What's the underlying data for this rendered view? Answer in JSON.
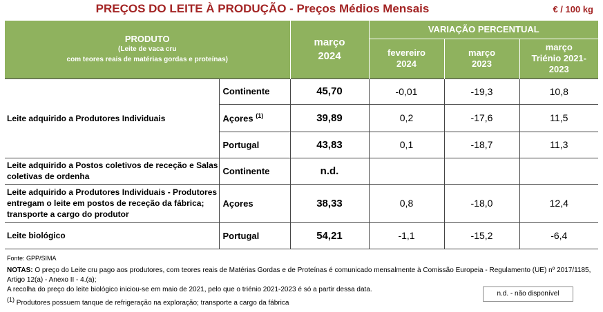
{
  "title": "PREÇOS DO LEITE À PRODUÇÃO - Preços Médios Mensais",
  "unit": "€ / 100 kg",
  "header": {
    "produto": "PRODUTO",
    "produto_sub1": "(Leite de vaca cru",
    "produto_sub2": "com teores reais de matérias gordas e proteínas)",
    "col_main_1": "março",
    "col_main_2": "2024",
    "variacao": "VARIAÇÃO PERCENTUAL",
    "var1_a": "fevereiro",
    "var1_b": "2024",
    "var2_a": "março",
    "var2_b": "2023",
    "var3_a": "março",
    "var3_b": "Triénio 2021-",
    "var3_c": "2023"
  },
  "rows": [
    {
      "product": "Leite adquirido a Produtores Individuais",
      "region": "Continente",
      "price": "45,70",
      "v1": "-0,01",
      "v2": "-19,3",
      "v3": "10,8"
    },
    {
      "region": "Açores",
      "sup": "(1)",
      "price": "39,89",
      "v1": "0,2",
      "v2": "-17,6",
      "v3": "11,5"
    },
    {
      "region": "Portugal",
      "price": "43,83",
      "v1": "0,1",
      "v2": "-18,7",
      "v3": "11,3"
    },
    {
      "product": "Leite adquirido a Postos coletivos de receção e Salas coletivas de ordenha",
      "region": "Continente",
      "price": "n.d.",
      "v1": "",
      "v2": "",
      "v3": ""
    },
    {
      "product": "Leite adquirido a Produtores Individuais - Produtores entregam o leite em postos de receção da fábrica; transporte a cargo do produtor",
      "region": "Açores",
      "price": "38,33",
      "v1": "0,8",
      "v2": "-18,0",
      "v3": "12,4"
    },
    {
      "product": "Leite biológico",
      "region": "Portugal",
      "price": "54,21",
      "v1": "-1,1",
      "v2": "-15,2",
      "v3": "-6,4"
    }
  ],
  "fonte": "Fonte: GPP/SIMA",
  "notes_label": "NOTAS:",
  "notes_line1": " O preço do Leite cru pago aos produtores, com teores reais de Matérias Gordas e de Proteínas é comunicado mensalmente à Comissão Europeia - Regulamento (UE) nº 2017/1185, Artigo 12(a) - Anexo II - 4.(a);",
  "notes_line2": "A recolha do preço do leite biológico iniciou-se em maio de 2021, pelo que o triénio 2021-2023 é só a partir dessa data.",
  "footnote_sup": "(1)",
  "footnote_text": " Produtores possuem tanque de refrigeração na exploração; transporte a cargo da fábrica",
  "legend": "n.d. - não disponível",
  "colors": {
    "header_bg": "#8fb25e",
    "title": "#a32424"
  }
}
